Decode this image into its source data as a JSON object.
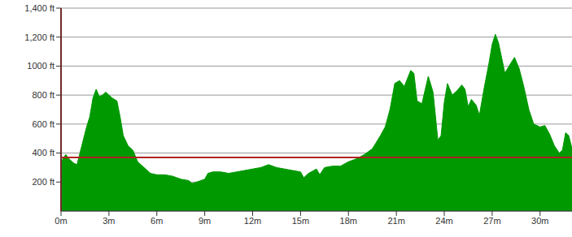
{
  "chart_data": {
    "type": "area",
    "color": "#009900",
    "grid": true,
    "x": [
      0,
      0.3,
      0.5,
      0.8,
      1.0,
      1.3,
      1.6,
      1.8,
      2.0,
      2.2,
      2.4,
      2.6,
      2.8,
      3.0,
      3.2,
      3.5,
      3.7,
      3.9,
      4.2,
      4.5,
      4.8,
      5.0,
      5.3,
      5.6,
      6.0,
      6.5,
      7.0,
      7.5,
      8.0,
      8.2,
      8.5,
      9.0,
      9.2,
      9.5,
      10,
      10.5,
      11,
      11.5,
      12,
      12.5,
      13,
      13.5,
      14,
      14.5,
      15,
      15.2,
      15.5,
      16,
      16.2,
      16.5,
      17,
      17.5,
      18,
      18.5,
      19,
      19.5,
      20,
      20.3,
      20.6,
      20.9,
      21.2,
      21.5,
      21.9,
      22.1,
      22.3,
      22.6,
      23.0,
      23.3,
      23.6,
      23.8,
      24.0,
      24.2,
      24.5,
      24.8,
      25.1,
      25.3,
      25.5,
      25.7,
      26.0,
      26.2,
      26.5,
      26.8,
      27.0,
      27.2,
      27.4,
      27.8,
      28.0,
      28.4,
      28.7,
      29.0,
      29.3,
      29.6,
      30.0,
      30.3,
      30.6,
      30.9,
      31.2,
      31.4,
      31.6,
      31.8,
      32
    ],
    "values": [
      340,
      390,
      360,
      330,
      320,
      450,
      580,
      650,
      780,
      840,
      790,
      800,
      820,
      800,
      780,
      760,
      650,
      520,
      450,
      420,
      340,
      320,
      290,
      260,
      250,
      250,
      240,
      220,
      210,
      190,
      200,
      220,
      260,
      270,
      270,
      260,
      270,
      280,
      290,
      300,
      320,
      300,
      290,
      280,
      270,
      230,
      260,
      290,
      250,
      300,
      310,
      310,
      340,
      360,
      390,
      430,
      520,
      580,
      700,
      880,
      900,
      860,
      970,
      950,
      760,
      740,
      930,
      820,
      490,
      520,
      750,
      880,
      800,
      830,
      870,
      840,
      720,
      770,
      730,
      660,
      850,
      1020,
      1150,
      1220,
      1160,
      950,
      990,
      1060,
      980,
      850,
      700,
      600,
      580,
      590,
      530,
      450,
      400,
      420,
      540,
      520,
      430
    ],
    "xlim": [
      0,
      32
    ],
    "xticks": [
      {
        "value": 0,
        "label": "0m"
      },
      {
        "value": 3,
        "label": "3m"
      },
      {
        "value": 6,
        "label": "6m"
      },
      {
        "value": 9,
        "label": "9m"
      },
      {
        "value": 12,
        "label": "12m"
      },
      {
        "value": 15,
        "label": "15m"
      },
      {
        "value": 18,
        "label": "18m"
      },
      {
        "value": 21,
        "label": "21m"
      },
      {
        "value": 24,
        "label": "24m"
      },
      {
        "value": 27,
        "label": "27m"
      },
      {
        "value": 30,
        "label": "30m"
      }
    ],
    "ylim": [
      0,
      1400
    ],
    "yticks": [
      {
        "value": 200,
        "label": "200 ft"
      },
      {
        "value": 400,
        "label": "400 ft"
      },
      {
        "value": 600,
        "label": "600 ft"
      },
      {
        "value": 800,
        "label": "800 ft"
      },
      {
        "value": 1000,
        "label": "1000 ft"
      },
      {
        "value": 1200,
        "label": "1,200 ft"
      },
      {
        "value": 1400,
        "label": "1,400 ft"
      }
    ],
    "annotations": [
      {
        "axis": "y",
        "value": 370,
        "color": "#b22222"
      },
      {
        "axis": "x",
        "value": 0,
        "color": "#b22222"
      }
    ]
  }
}
